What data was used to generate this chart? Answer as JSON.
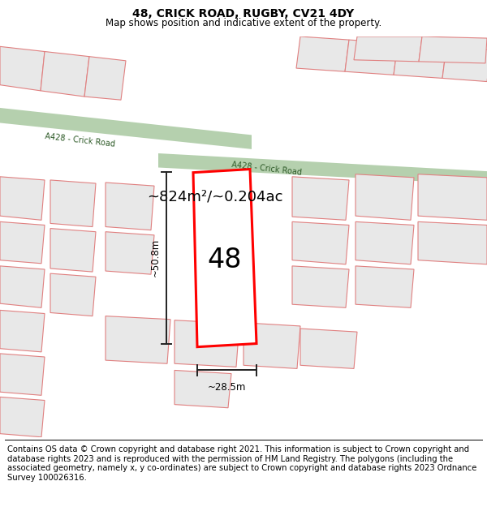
{
  "title": "48, CRICK ROAD, RUGBY, CV21 4DY",
  "subtitle": "Map shows position and indicative extent of the property.",
  "footer_text": "Contains OS data © Crown copyright and database right 2021. This information is subject to Crown copyright and database rights 2023 and is reproduced with the permission of HM Land Registry. The polygons (including the associated geometry, namely x, y co-ordinates) are subject to Crown copyright and database rights 2023 Ordnance Survey 100026316.",
  "area_label": "~824m²/~0.204ac",
  "width_label": "~28.5m",
  "height_label": "~50.8m",
  "plot_number": "48",
  "road_color": "#a8c8a0",
  "road_label1": "A428 - Crick Road",
  "road_label2": "A428 - Crick Road",
  "building_fill": "#e8e8e8",
  "building_edge": "#e08080",
  "highlight_edge": "#ff0000",
  "highlight_fill": "white",
  "dim_line_color": "#222222",
  "map_bg": "#f7f7f5",
  "title_fontsize": 10,
  "subtitle_fontsize": 8.5,
  "footer_fontsize": 7.2,
  "area_fontsize": 13
}
